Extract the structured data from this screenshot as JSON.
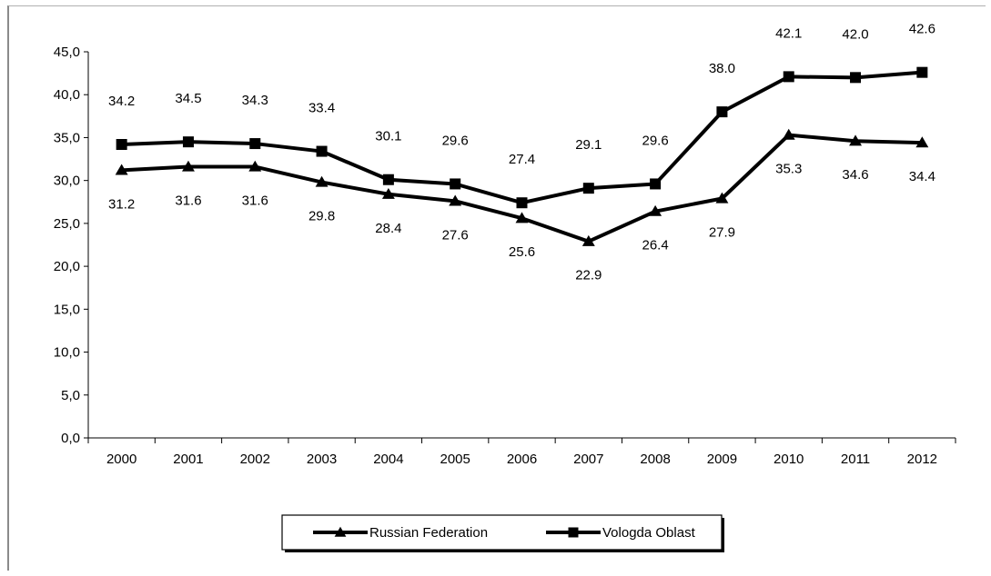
{
  "chart_data": {
    "type": "line",
    "title": "",
    "xlabel": "",
    "ylabel": "",
    "x": [
      "2000",
      "2001",
      "2002",
      "2003",
      "2004",
      "2005",
      "2006",
      "2007",
      "2008",
      "2009",
      "2010",
      "2011",
      "2012"
    ],
    "ylim": [
      0,
      45
    ],
    "ytick_step": 5,
    "ytick_labels": [
      "0,0",
      "5,0",
      "10,0",
      "15,0",
      "20,0",
      "25,0",
      "30,0",
      "35,0",
      "40,0",
      "45,0"
    ],
    "grid": false,
    "legend_position": "bottom",
    "series": [
      {
        "name": "Russian Federation",
        "marker": "triangle",
        "color": "#000000",
        "label_position": "below",
        "values": [
          31.2,
          31.6,
          31.6,
          29.8,
          28.4,
          27.6,
          25.6,
          22.9,
          26.4,
          27.9,
          35.3,
          34.6,
          34.4
        ],
        "labels": [
          "31.2",
          "31.6",
          "31.6",
          "29.8",
          "28.4",
          "27.6",
          "25.6",
          "22.9",
          "26.4",
          "27.9",
          "35.3",
          "34.6",
          "34.4"
        ]
      },
      {
        "name": "Vologda Oblast",
        "marker": "square",
        "color": "#000000",
        "label_position": "above",
        "values": [
          34.2,
          34.5,
          34.3,
          33.4,
          30.1,
          29.6,
          27.4,
          29.1,
          29.6,
          38.0,
          42.1,
          42.0,
          42.6
        ],
        "labels": [
          "34.2",
          "34.5",
          "34.3",
          "33.4",
          "30.1",
          "29.6",
          "27.4",
          "29.1",
          "29.6",
          "38.0",
          "42.1",
          "42.0",
          "42.6"
        ]
      }
    ]
  }
}
